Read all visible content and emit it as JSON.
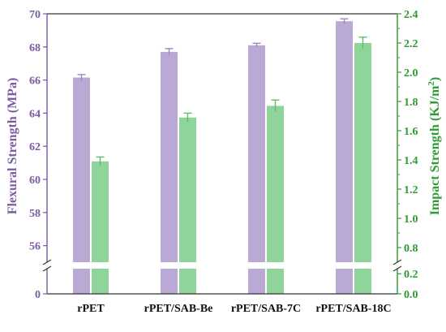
{
  "chart_data": {
    "type": "bar",
    "categories": [
      "rPET",
      "rPET/SAB-Be",
      "rPET/SAB-7C",
      "rPET/SAB-18C"
    ],
    "series": [
      {
        "name": "Flexural Strength (MPa)",
        "axis": "left",
        "values": [
          66.15,
          67.7,
          68.1,
          69.55
        ],
        "errors": [
          0.18,
          0.2,
          0.12,
          0.15
        ]
      },
      {
        "name": "Impact Strength (KJ/m²)",
        "axis": "right",
        "values": [
          1.39,
          1.69,
          1.77,
          2.2
        ],
        "errors": [
          0.03,
          0.03,
          0.04,
          0.04
        ]
      }
    ],
    "left_axis": {
      "label": "Flexural Strength (MPa)",
      "lower_ticks": [
        0
      ],
      "upper_ticks": [
        56,
        58,
        60,
        62,
        64,
        66,
        68,
        70
      ],
      "upper_range": [
        55,
        70
      ],
      "break": true
    },
    "right_axis": {
      "label_main": "Impact Strength (KJ/m",
      "label_sup": "2",
      "label_end": ")",
      "lower_ticks": [
        "0.0",
        "0.2"
      ],
      "upper_ticks": [
        "0.8",
        "1.0",
        "1.2",
        "1.4",
        "1.6",
        "1.8",
        "2.0",
        "2.2",
        "2.4"
      ],
      "upper_range": [
        0.7,
        2.4
      ],
      "break": true
    },
    "colors": {
      "flexural": "#b9a9d4",
      "impact": "#8fd49a",
      "left_axis": "#7a5ca0",
      "right_axis": "#2e9a35"
    },
    "grid": false,
    "legend": "none"
  }
}
